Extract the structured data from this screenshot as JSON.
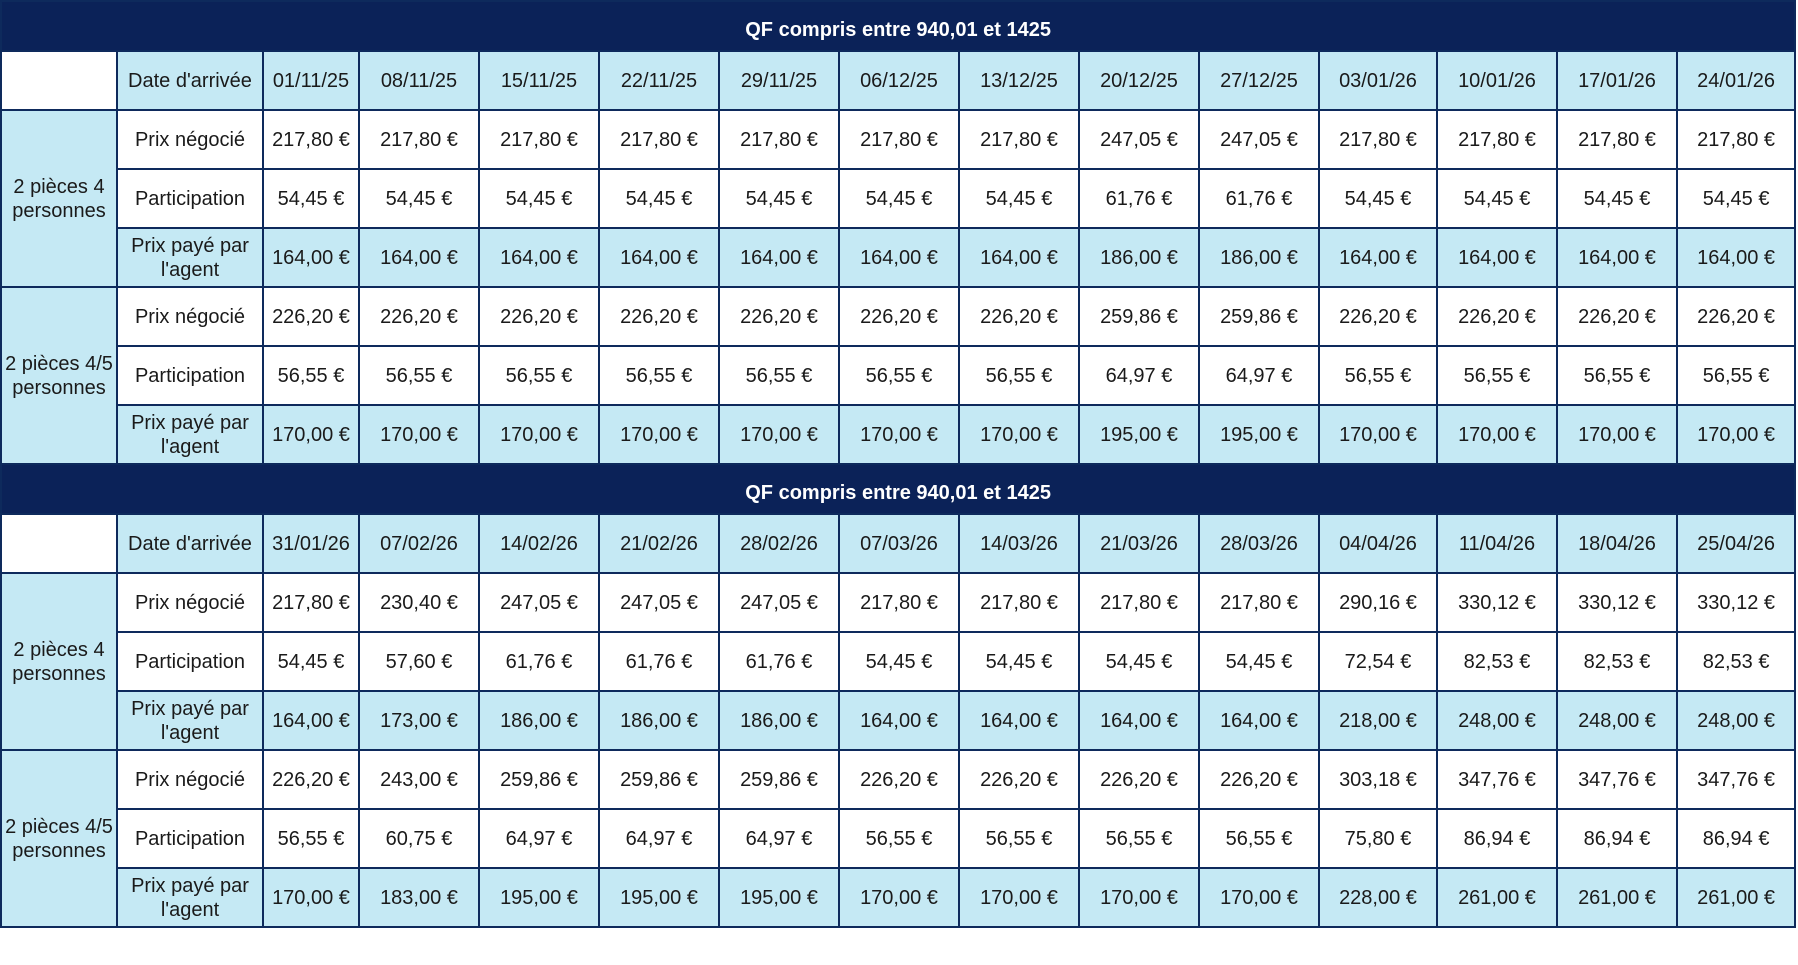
{
  "sections": [
    {
      "title": "QF compris entre 940,01 et 1425",
      "date_label": "Date d'arrivée",
      "dates": [
        "01/11/25",
        "08/11/25",
        "15/11/25",
        "22/11/25",
        "29/11/25",
        "06/12/25",
        "13/12/25",
        "20/12/25",
        "27/12/25",
        "03/01/26",
        "10/01/26",
        "17/01/26",
        "24/01/26"
      ],
      "groups": [
        {
          "label": "2 pièces 4 personnes",
          "rows": [
            {
              "label": "Prix négocié",
              "values": [
                "217,80 €",
                "217,80 €",
                "217,80 €",
                "217,80 €",
                "217,80 €",
                "217,80 €",
                "217,80 €",
                "247,05 €",
                "247,05 €",
                "217,80 €",
                "217,80 €",
                "217,80 €",
                "217,80 €"
              ]
            },
            {
              "label": "Participation",
              "values": [
                "54,45 €",
                "54,45 €",
                "54,45 €",
                "54,45 €",
                "54,45 €",
                "54,45 €",
                "54,45 €",
                "61,76 €",
                "61,76 €",
                "54,45 €",
                "54,45 €",
                "54,45 €",
                "54,45 €"
              ]
            },
            {
              "label": "Prix payé par l'agent",
              "values": [
                "164,00 €",
                "164,00 €",
                "164,00 €",
                "164,00 €",
                "164,00 €",
                "164,00 €",
                "164,00 €",
                "186,00 €",
                "186,00 €",
                "164,00 €",
                "164,00 €",
                "164,00 €",
                "164,00 €"
              ]
            }
          ]
        },
        {
          "label": "2 pièces 4/5 personnes",
          "rows": [
            {
              "label": "Prix négocié",
              "values": [
                "226,20 €",
                "226,20 €",
                "226,20 €",
                "226,20 €",
                "226,20 €",
                "226,20 €",
                "226,20 €",
                "259,86 €",
                "259,86 €",
                "226,20 €",
                "226,20 €",
                "226,20 €",
                "226,20 €"
              ]
            },
            {
              "label": "Participation",
              "values": [
                "56,55 €",
                "56,55 €",
                "56,55 €",
                "56,55 €",
                "56,55 €",
                "56,55 €",
                "56,55 €",
                "64,97 €",
                "64,97 €",
                "56,55 €",
                "56,55 €",
                "56,55 €",
                "56,55 €"
              ]
            },
            {
              "label": "Prix payé par l'agent",
              "values": [
                "170,00 €",
                "170,00 €",
                "170,00 €",
                "170,00 €",
                "170,00 €",
                "170,00 €",
                "170,00 €",
                "195,00 €",
                "195,00 €",
                "170,00 €",
                "170,00 €",
                "170,00 €",
                "170,00 €"
              ]
            }
          ]
        }
      ]
    },
    {
      "title": "QF compris entre 940,01 et 1425",
      "date_label": "Date d'arrivée",
      "dates": [
        "31/01/26",
        "07/02/26",
        "14/02/26",
        "21/02/26",
        "28/02/26",
        "07/03/26",
        "14/03/26",
        "21/03/26",
        "28/03/26",
        "04/04/26",
        "11/04/26",
        "18/04/26",
        "25/04/26"
      ],
      "groups": [
        {
          "label": "2 pièces 4 personnes",
          "rows": [
            {
              "label": "Prix négocié",
              "values": [
                "217,80 €",
                "230,40 €",
                "247,05 €",
                "247,05 €",
                "247,05 €",
                "217,80 €",
                "217,80 €",
                "217,80 €",
                "217,80 €",
                "290,16 €",
                "330,12 €",
                "330,12 €",
                "330,12 €"
              ]
            },
            {
              "label": "Participation",
              "values": [
                "54,45 €",
                "57,60 €",
                "61,76 €",
                "61,76 €",
                "61,76 €",
                "54,45 €",
                "54,45 €",
                "54,45 €",
                "54,45 €",
                "72,54 €",
                "82,53 €",
                "82,53 €",
                "82,53 €"
              ]
            },
            {
              "label": "Prix payé par l'agent",
              "values": [
                "164,00 €",
                "173,00 €",
                "186,00 €",
                "186,00 €",
                "186,00 €",
                "164,00 €",
                "164,00 €",
                "164,00 €",
                "164,00 €",
                "218,00 €",
                "248,00 €",
                "248,00 €",
                "248,00 €"
              ]
            }
          ]
        },
        {
          "label": "2 pièces 4/5 personnes",
          "rows": [
            {
              "label": "Prix négocié",
              "values": [
                "226,20 €",
                "243,00 €",
                "259,86 €",
                "259,86 €",
                "259,86 €",
                "226,20 €",
                "226,20 €",
                "226,20 €",
                "226,20 €",
                "303,18 €",
                "347,76 €",
                "347,76 €",
                "347,76 €"
              ]
            },
            {
              "label": "Participation",
              "values": [
                "56,55 €",
                "60,75 €",
                "64,97 €",
                "64,97 €",
                "64,97 €",
                "56,55 €",
                "56,55 €",
                "56,55 €",
                "56,55 €",
                "75,80 €",
                "86,94 €",
                "86,94 €",
                "86,94 €"
              ]
            },
            {
              "label": "Prix payé par l'agent",
              "values": [
                "170,00 €",
                "183,00 €",
                "195,00 €",
                "195,00 €",
                "195,00 €",
                "170,00 €",
                "170,00 €",
                "170,00 €",
                "170,00 €",
                "228,00 €",
                "261,00 €",
                "261,00 €",
                "261,00 €"
              ]
            }
          ]
        }
      ]
    }
  ]
}
